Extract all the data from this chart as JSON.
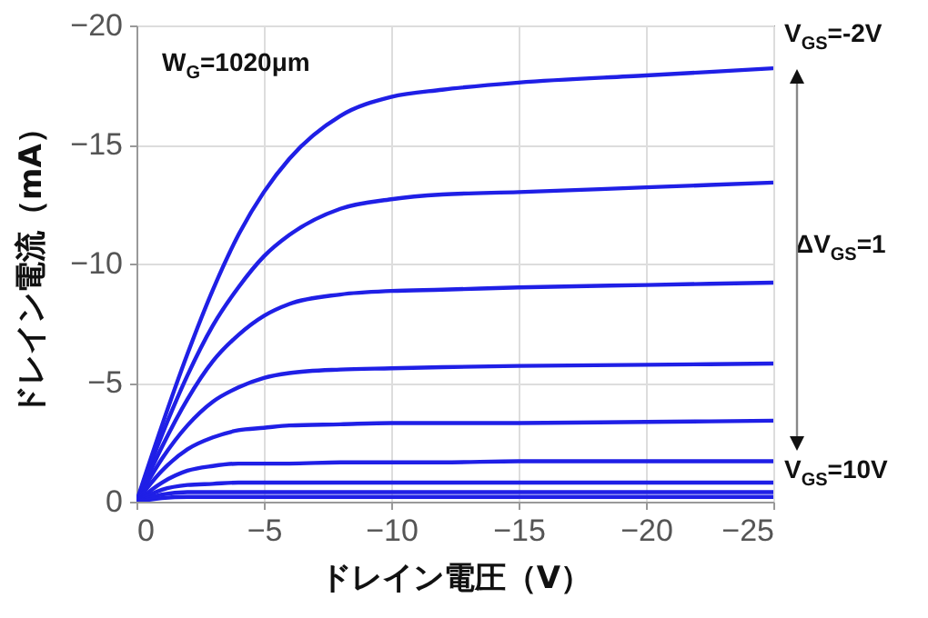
{
  "chart_data": {
    "type": "line",
    "xlabel": "ドレイン電圧（V）",
    "ylabel": "ドレイン電流（mA）",
    "xlim": [
      0,
      -25
    ],
    "xticks": [
      0,
      -5,
      -10,
      -15,
      -20,
      -25
    ],
    "ylim": [
      0,
      -20
    ],
    "yticks": [
      0,
      -5,
      -10,
      -15,
      -20
    ],
    "grid": true,
    "line_style": "solid",
    "x": [
      0,
      -1,
      -2,
      -3,
      -4,
      -5,
      -6,
      -8,
      -10,
      -12,
      -15,
      -20,
      -25
    ],
    "annotations": [
      "W$_{G}$=1020μm",
      "V$_{GS}$=-2V",
      "ΔV$_{GS}$=1",
      "V$_{GS}$=10V"
    ],
    "series": [
      {
        "color": "#1f1fe6",
        "values": [
          0,
          -3.2,
          -6.2,
          -8.9,
          -11.2,
          -13.0,
          -14.4,
          -16.2,
          -17.0,
          -17.3,
          -17.6,
          -17.9,
          -18.2
        ]
      },
      {
        "color": "#1f1fe6",
        "values": [
          0,
          -2.8,
          -5.3,
          -7.4,
          -9.0,
          -10.3,
          -11.2,
          -12.3,
          -12.7,
          -12.9,
          -13.0,
          -13.2,
          -13.4
        ]
      },
      {
        "color": "#1f1fe6",
        "values": [
          0,
          -2.3,
          -4.3,
          -5.9,
          -7.0,
          -7.8,
          -8.3,
          -8.7,
          -8.85,
          -8.9,
          -9.0,
          -9.1,
          -9.2
        ]
      },
      {
        "color": "#1f1fe6",
        "values": [
          0,
          -1.8,
          -3.2,
          -4.2,
          -4.8,
          -5.2,
          -5.4,
          -5.55,
          -5.6,
          -5.65,
          -5.7,
          -5.75,
          -5.8
        ]
      },
      {
        "color": "#1f1fe6",
        "values": [
          0,
          -1.3,
          -2.2,
          -2.7,
          -3.0,
          -3.1,
          -3.2,
          -3.25,
          -3.3,
          -3.3,
          -3.3,
          -3.35,
          -3.4
        ]
      },
      {
        "color": "#1f1fe6",
        "values": [
          0,
          -0.8,
          -1.3,
          -1.5,
          -1.6,
          -1.6,
          -1.6,
          -1.65,
          -1.65,
          -1.65,
          -1.7,
          -1.7,
          -1.7
        ]
      },
      {
        "color": "#1f1fe6",
        "values": [
          0,
          -0.5,
          -0.7,
          -0.75,
          -0.8,
          -0.8,
          -0.8,
          -0.8,
          -0.8,
          -0.8,
          -0.8,
          -0.8,
          -0.8
        ]
      },
      {
        "color": "#1f1fe6",
        "values": [
          0,
          -0.3,
          -0.4,
          -0.4,
          -0.4,
          -0.4,
          -0.4,
          -0.4,
          -0.4,
          -0.4,
          -0.4,
          -0.4,
          -0.4
        ]
      },
      {
        "color": "#1f1fe6",
        "values": [
          0,
          -0.15,
          -0.2,
          -0.2,
          -0.2,
          -0.2,
          -0.2,
          -0.2,
          -0.2,
          -0.2,
          -0.2,
          -0.2,
          -0.2
        ]
      }
    ]
  }
}
